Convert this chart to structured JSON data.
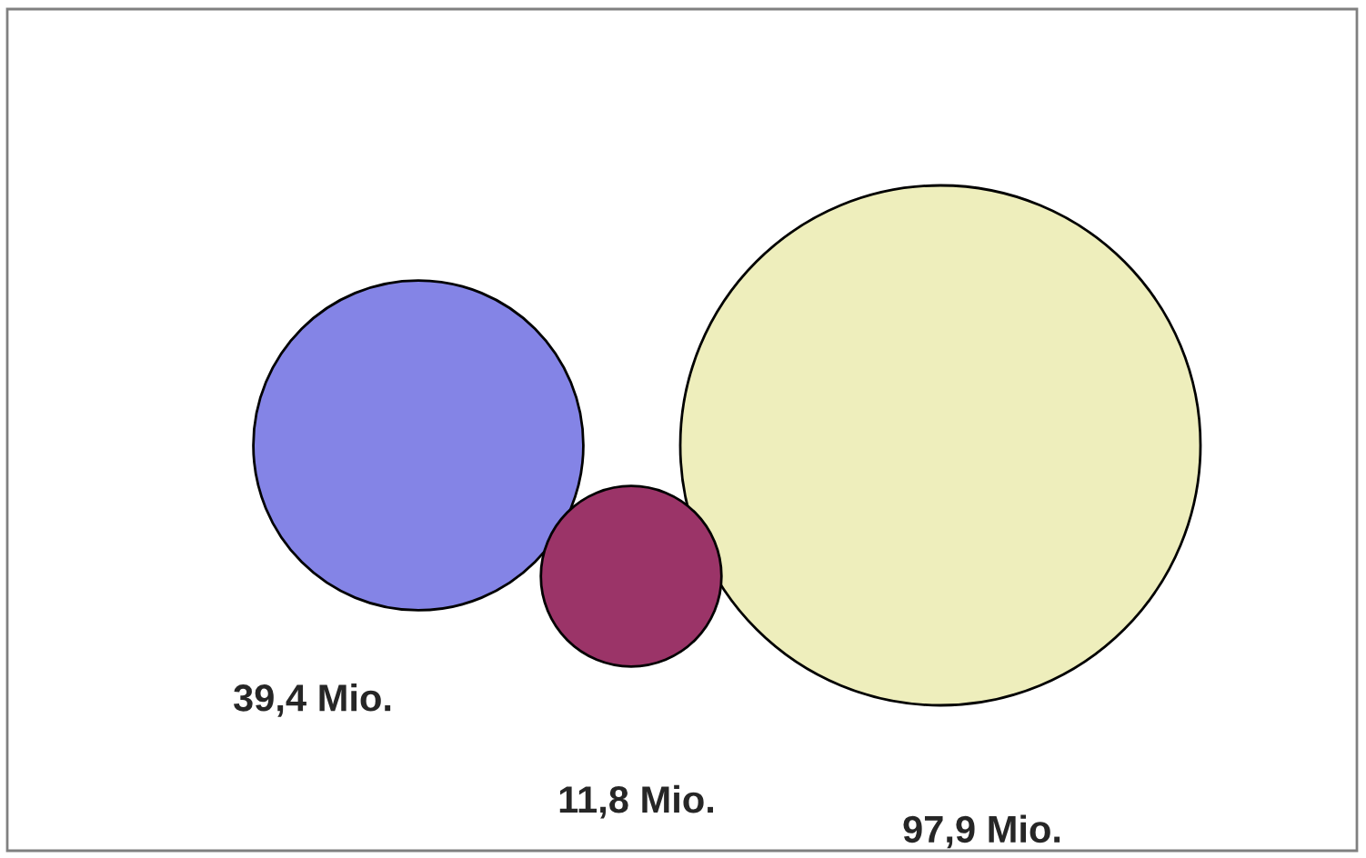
{
  "chart_data": {
    "type": "other",
    "categories": [
      null,
      null,
      null
    ],
    "values": [
      39.4,
      11.8,
      97.9
    ],
    "value_labels": [
      "39,4 Mio.",
      "11,8 Mio.",
      "97,9 Mio."
    ],
    "colors": [
      "#8484e6",
      "#9b3468",
      "#eeeebc"
    ]
  }
}
